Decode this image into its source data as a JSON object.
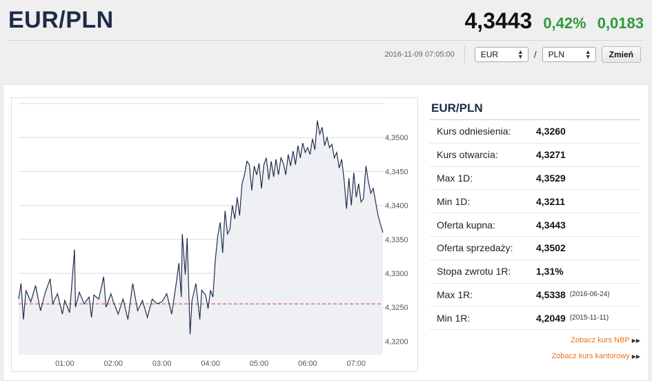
{
  "header": {
    "pair": "EUR/PLN",
    "price": "4,3443",
    "change_pct": "0,42%",
    "change_abs": "0,0183",
    "timestamp": "2016-11-09 07:05:00",
    "base_select": "EUR",
    "quote_select": "PLN",
    "slash": "/",
    "change_button": "Zmień",
    "colors": {
      "positive": "#2e9a3a",
      "title": "#1e2a4a",
      "link": "#e8721c"
    }
  },
  "panel": {
    "title": "EUR/PLN",
    "rows": [
      {
        "label": "Kurs odniesienia:",
        "value": "4,3260",
        "date": ""
      },
      {
        "label": "Kurs otwarcia:",
        "value": "4,3271",
        "date": ""
      },
      {
        "label": "Max 1D:",
        "value": "4,3529",
        "date": ""
      },
      {
        "label": "Min 1D:",
        "value": "4,3211",
        "date": ""
      },
      {
        "label": "Oferta kupna:",
        "value": "4,3443",
        "date": ""
      },
      {
        "label": "Oferta sprzedaży:",
        "value": "4,3502",
        "date": ""
      },
      {
        "label": "Stopa zwrotu 1R:",
        "value": "1,31%",
        "date": ""
      },
      {
        "label": "Max 1R:",
        "value": "4,5338",
        "date": "(2016-06-24)"
      },
      {
        "label": "Min 1R:",
        "value": "4,2049",
        "date": "(2015-11-11)"
      }
    ],
    "links": [
      {
        "label": "Zobacz kurs NBP",
        "icon": "double-triangle-right-icon"
      },
      {
        "label": "Zobacz kurs kantorowy",
        "icon": "double-triangle-right-icon"
      }
    ]
  },
  "chart_data": {
    "type": "area",
    "title": "",
    "xlabel": "",
    "ylabel": "",
    "xlim": [
      0.05,
      7.55
    ],
    "ylim": [
      4.318,
      4.355
    ],
    "x_ticks": [
      "01:00",
      "02:00",
      "03:00",
      "04:00",
      "05:00",
      "06:00",
      "07:00"
    ],
    "x_tick_values": [
      1,
      2,
      3,
      4,
      5,
      6,
      7
    ],
    "y_ticks": [
      "4,3200",
      "4,3250",
      "4,3300",
      "4,3350",
      "4,3400",
      "4,3450",
      "4,3500"
    ],
    "y_tick_values": [
      4.32,
      4.325,
      4.33,
      4.335,
      4.34,
      4.345,
      4.35
    ],
    "reference_line": 4.3255,
    "grid": "horizontal",
    "series": [
      {
        "values": [
          [
            0.05,
            4.3262
          ],
          [
            0.1,
            4.3285
          ],
          [
            0.15,
            4.3232
          ],
          [
            0.2,
            4.3275
          ],
          [
            0.3,
            4.3258
          ],
          [
            0.4,
            4.3282
          ],
          [
            0.5,
            4.3245
          ],
          [
            0.6,
            4.3272
          ],
          [
            0.7,
            4.3292
          ],
          [
            0.75,
            4.3255
          ],
          [
            0.85,
            4.327
          ],
          [
            0.95,
            4.324
          ],
          [
            1.0,
            4.326
          ],
          [
            1.1,
            4.3242
          ],
          [
            1.2,
            4.3335
          ],
          [
            1.22,
            4.325
          ],
          [
            1.3,
            4.3272
          ],
          [
            1.4,
            4.3255
          ],
          [
            1.5,
            4.3265
          ],
          [
            1.55,
            4.3235
          ],
          [
            1.6,
            4.3268
          ],
          [
            1.7,
            4.3262
          ],
          [
            1.8,
            4.3295
          ],
          [
            1.85,
            4.325
          ],
          [
            1.95,
            4.327
          ],
          [
            2.0,
            4.3258
          ],
          [
            2.1,
            4.324
          ],
          [
            2.2,
            4.3262
          ],
          [
            2.3,
            4.3232
          ],
          [
            2.4,
            4.3285
          ],
          [
            2.5,
            4.3245
          ],
          [
            2.6,
            4.326
          ],
          [
            2.7,
            4.3235
          ],
          [
            2.8,
            4.3262
          ],
          [
            2.9,
            4.3255
          ],
          [
            3.0,
            4.3258
          ],
          [
            3.1,
            4.327
          ],
          [
            3.2,
            4.324
          ],
          [
            3.3,
            4.3288
          ],
          [
            3.35,
            4.3315
          ],
          [
            3.4,
            4.3265
          ],
          [
            3.42,
            4.3358
          ],
          [
            3.48,
            4.3298
          ],
          [
            3.52,
            4.3352
          ],
          [
            3.58,
            4.321
          ],
          [
            3.62,
            4.326
          ],
          [
            3.7,
            4.3285
          ],
          [
            3.78,
            4.3232
          ],
          [
            3.82,
            4.3275
          ],
          [
            3.9,
            4.3268
          ],
          [
            3.95,
            4.3248
          ],
          [
            4.0,
            4.3275
          ],
          [
            4.05,
            4.3265
          ],
          [
            4.1,
            4.332
          ],
          [
            4.15,
            4.3355
          ],
          [
            4.2,
            4.3375
          ],
          [
            4.25,
            4.333
          ],
          [
            4.3,
            4.3392
          ],
          [
            4.35,
            4.3358
          ],
          [
            4.4,
            4.3365
          ],
          [
            4.45,
            4.34
          ],
          [
            4.5,
            4.338
          ],
          [
            4.55,
            4.3412
          ],
          [
            4.6,
            4.3385
          ],
          [
            4.65,
            4.3432
          ],
          [
            4.7,
            4.3445
          ],
          [
            4.75,
            4.3465
          ],
          [
            4.8,
            4.346
          ],
          [
            4.85,
            4.3422
          ],
          [
            4.9,
            4.3458
          ],
          [
            4.95,
            4.3445
          ],
          [
            5.0,
            4.3462
          ],
          [
            5.05,
            4.3425
          ],
          [
            5.1,
            4.346
          ],
          [
            5.15,
            4.347
          ],
          [
            5.2,
            4.3438
          ],
          [
            5.25,
            4.3465
          ],
          [
            5.3,
            4.3442
          ],
          [
            5.35,
            4.3468
          ],
          [
            5.4,
            4.3445
          ],
          [
            5.45,
            4.347
          ],
          [
            5.5,
            4.3462
          ],
          [
            5.55,
            4.3445
          ],
          [
            5.6,
            4.3475
          ],
          [
            5.65,
            4.3458
          ],
          [
            5.7,
            4.348
          ],
          [
            5.75,
            4.346
          ],
          [
            5.8,
            4.3488
          ],
          [
            5.85,
            4.347
          ],
          [
            5.9,
            4.3492
          ],
          [
            5.95,
            4.3478
          ],
          [
            6.0,
            4.3485
          ],
          [
            6.05,
            4.3475
          ],
          [
            6.1,
            4.3498
          ],
          [
            6.15,
            4.3482
          ],
          [
            6.2,
            4.3525
          ],
          [
            6.25,
            4.3505
          ],
          [
            6.3,
            4.3515
          ],
          [
            6.35,
            4.3488
          ],
          [
            6.4,
            4.35
          ],
          [
            6.45,
            4.3485
          ],
          [
            6.5,
            4.349
          ],
          [
            6.55,
            4.347
          ],
          [
            6.6,
            4.3478
          ],
          [
            6.65,
            4.3455
          ],
          [
            6.7,
            4.3468
          ],
          [
            6.75,
            4.3438
          ],
          [
            6.8,
            4.3395
          ],
          [
            6.85,
            4.344
          ],
          [
            6.9,
            4.34
          ],
          [
            6.95,
            4.3448
          ],
          [
            7.0,
            4.3412
          ],
          [
            7.05,
            4.3432
          ],
          [
            7.1,
            4.3405
          ],
          [
            7.15,
            4.341
          ],
          [
            7.2,
            4.3458
          ],
          [
            7.25,
            4.3435
          ],
          [
            7.3,
            4.3418
          ],
          [
            7.35,
            4.3425
          ],
          [
            7.4,
            4.3405
          ],
          [
            7.45,
            4.3385
          ],
          [
            7.5,
            4.3372
          ],
          [
            7.55,
            4.336
          ]
        ]
      }
    ]
  }
}
